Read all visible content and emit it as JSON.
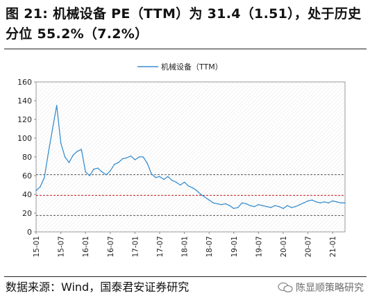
{
  "header": {
    "title": "图 21: 机械设备 PE（TTM）为 31.4（1.51），处于历史分位 55.2%（7.2%）"
  },
  "footer": {
    "source": "数据来源：Wind，国泰君安证券研究",
    "watermark": "陈显顺策略研究"
  },
  "colors": {
    "line": "#3a8fd0",
    "ref_high": "#555555",
    "ref_mid": "#c0171c",
    "ref_low": "#555555"
  },
  "chart_data": {
    "type": "line",
    "title": "",
    "legend": {
      "position": "top-center",
      "entries": [
        "机械设备（TTM）"
      ]
    },
    "xlabel": "",
    "ylabel": "",
    "ylim": [
      0,
      160
    ],
    "yticks": [
      0,
      20,
      40,
      60,
      80,
      100,
      120,
      140,
      160
    ],
    "xticks": [
      "15-01",
      "15-07",
      "16-01",
      "16-07",
      "17-01",
      "17-07",
      "18-01",
      "18-07",
      "19-01",
      "19-07",
      "20-01",
      "20-07",
      "21-01"
    ],
    "xlim": [
      "2015-01",
      "2021-04"
    ],
    "grid": false,
    "series": [
      {
        "name": "机械设备（TTM）",
        "x": [
          "2015-01",
          "2015-02",
          "2015-03",
          "2015-04",
          "2015-05",
          "2015-06",
          "2015-07",
          "2015-08",
          "2015-09",
          "2015-10",
          "2015-11",
          "2015-12",
          "2016-01",
          "2016-02",
          "2016-03",
          "2016-04",
          "2016-05",
          "2016-06",
          "2016-07",
          "2016-08",
          "2016-09",
          "2016-10",
          "2016-11",
          "2016-12",
          "2017-01",
          "2017-02",
          "2017-03",
          "2017-04",
          "2017-05",
          "2017-06",
          "2017-07",
          "2017-08",
          "2017-09",
          "2017-10",
          "2017-11",
          "2017-12",
          "2018-01",
          "2018-02",
          "2018-03",
          "2018-04",
          "2018-05",
          "2018-06",
          "2018-07",
          "2018-08",
          "2018-09",
          "2018-10",
          "2018-11",
          "2018-12",
          "2019-01",
          "2019-02",
          "2019-03",
          "2019-04",
          "2019-05",
          "2019-06",
          "2019-07",
          "2019-08",
          "2019-09",
          "2019-10",
          "2019-11",
          "2019-12",
          "2020-01",
          "2020-02",
          "2020-03",
          "2020-04",
          "2020-05",
          "2020-06",
          "2020-07",
          "2020-08",
          "2020-09",
          "2020-10",
          "2020-11",
          "2020-12",
          "2021-01",
          "2021-02",
          "2021-03",
          "2021-04"
        ],
        "values": [
          44,
          48,
          58,
          85,
          110,
          135,
          95,
          80,
          74,
          82,
          86,
          88,
          64,
          60,
          67,
          68,
          64,
          61,
          65,
          72,
          74,
          78,
          79,
          81,
          77,
          80,
          80,
          73,
          62,
          58,
          59,
          56,
          59,
          55,
          53,
          50,
          53,
          49,
          47,
          44,
          40,
          37,
          34,
          31,
          30,
          29,
          30,
          28,
          25,
          26,
          31,
          30,
          28,
          27,
          29,
          28,
          27,
          26,
          28,
          27,
          25,
          28,
          26,
          27,
          29,
          31,
          33,
          34,
          32,
          31,
          32,
          31,
          33,
          32,
          31,
          31
        ]
      }
    ],
    "reference_lines": [
      {
        "y": 61,
        "style": "dashed",
        "color": "#555555"
      },
      {
        "y": 39,
        "style": "dashed",
        "color": "#c0171c"
      },
      {
        "y": 17.5,
        "style": "dashed",
        "color": "#555555"
      }
    ]
  }
}
